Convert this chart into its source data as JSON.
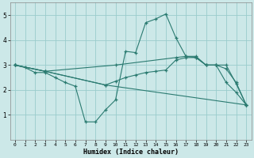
{
  "xlabel": "Humidex (Indice chaleur)",
  "bg_color": "#cce8e8",
  "grid_color": "#99cccc",
  "line_color": "#2a7a70",
  "xlim": [
    -0.5,
    23.5
  ],
  "ylim": [
    0,
    5.5
  ],
  "xticks": [
    0,
    1,
    2,
    3,
    4,
    5,
    6,
    7,
    8,
    9,
    10,
    11,
    12,
    13,
    14,
    15,
    16,
    17,
    18,
    19,
    20,
    21,
    22,
    23
  ],
  "yticks": [
    1,
    2,
    3,
    4,
    5
  ],
  "lines": [
    {
      "x": [
        0,
        1,
        2,
        3,
        4,
        5,
        6,
        7,
        8,
        9,
        10,
        11,
        12,
        13,
        14,
        15,
        16,
        17,
        18,
        19,
        20,
        21,
        22,
        23
      ],
      "y": [
        3.0,
        2.9,
        2.7,
        2.7,
        2.5,
        2.3,
        2.15,
        0.72,
        0.72,
        1.2,
        1.6,
        3.55,
        3.5,
        4.7,
        4.85,
        5.05,
        4.1,
        3.35,
        3.35,
        3.0,
        3.0,
        2.3,
        1.9,
        1.4
      ]
    },
    {
      "x": [
        0,
        3,
        10,
        16,
        17,
        18,
        19,
        20,
        21,
        22,
        23
      ],
      "y": [
        3.0,
        2.75,
        3.0,
        3.3,
        3.35,
        3.3,
        3.0,
        3.0,
        3.0,
        2.25,
        1.4
      ]
    },
    {
      "x": [
        0,
        3,
        9,
        23
      ],
      "y": [
        3.0,
        2.75,
        2.2,
        1.4
      ]
    },
    {
      "x": [
        0,
        3,
        9,
        10,
        11,
        12,
        13,
        14,
        15,
        16,
        17,
        18,
        19,
        20,
        21,
        22,
        23
      ],
      "y": [
        3.0,
        2.75,
        2.2,
        2.35,
        2.5,
        2.6,
        2.7,
        2.75,
        2.8,
        3.2,
        3.3,
        3.3,
        3.0,
        3.0,
        2.85,
        2.3,
        1.4
      ]
    }
  ]
}
